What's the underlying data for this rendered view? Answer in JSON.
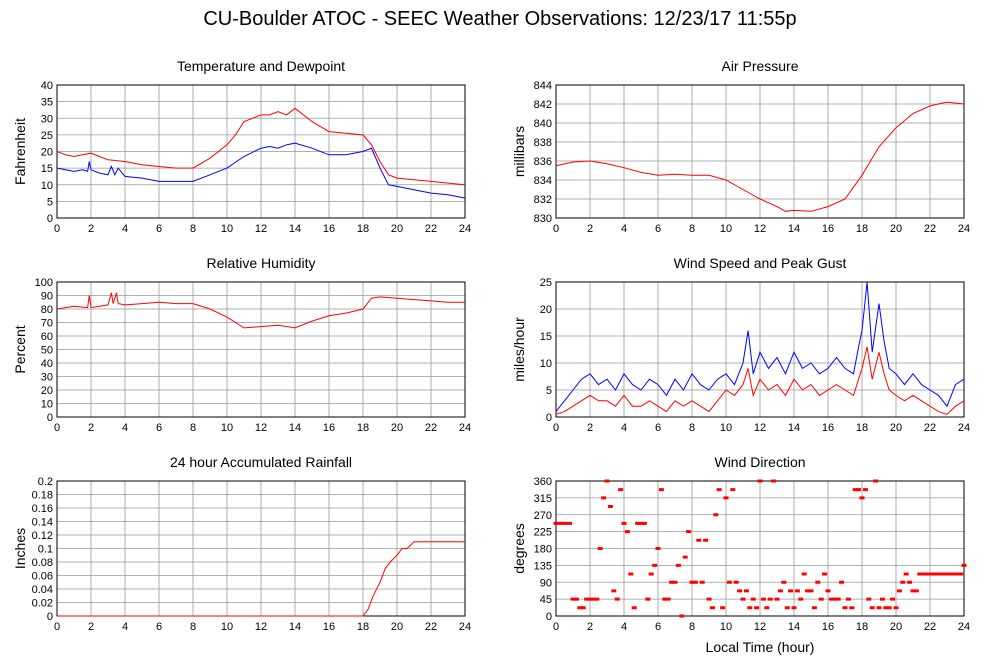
{
  "title": "CU-Boulder ATOC - SEEC Weather Observations: 12/23/17 11:55p",
  "xlabel": "Local Time (hour)",
  "colors": {
    "red": "#ff0000",
    "blue": "#0000ff",
    "grid": "#999999"
  },
  "chart_data": [
    {
      "type": "line",
      "title": "Temperature and Dewpoint",
      "ylabel": "Fahrenheit",
      "xlim": [
        0,
        24
      ],
      "ylim": [
        0,
        40
      ],
      "xticks": [
        0,
        2,
        4,
        6,
        8,
        10,
        12,
        14,
        16,
        18,
        20,
        22,
        24
      ],
      "yticks": [
        0,
        5,
        10,
        15,
        20,
        25,
        30,
        35,
        40
      ],
      "series": [
        {
          "color": "#ff0000",
          "x": [
            0,
            0.5,
            1,
            1.5,
            2,
            2.5,
            3,
            4,
            5,
            6,
            7,
            8,
            9,
            10,
            10.5,
            11,
            12,
            12.5,
            13,
            13.5,
            14,
            15,
            16,
            17,
            18,
            18.5,
            19,
            19.5,
            20,
            21,
            22,
            23,
            24
          ],
          "y": [
            20,
            19,
            18.5,
            19,
            19.5,
            18.5,
            17.5,
            17,
            16,
            15.5,
            15,
            15,
            18,
            22,
            25,
            29,
            31,
            31,
            32,
            31,
            33,
            29,
            26,
            25.5,
            25,
            22,
            17,
            13,
            12,
            11.5,
            11,
            10.5,
            10
          ]
        },
        {
          "color": "#0000ff",
          "x": [
            0,
            0.5,
            1,
            1.5,
            1.8,
            1.9,
            2,
            2.5,
            3,
            3.2,
            3.4,
            3.6,
            4,
            5,
            6,
            7,
            8,
            9,
            10,
            11,
            12,
            12.5,
            13,
            13.5,
            14,
            15,
            16,
            17,
            18,
            18.5,
            19,
            19.5,
            20,
            21,
            22,
            23,
            24
          ],
          "y": [
            15,
            14.5,
            14,
            14.5,
            14,
            17,
            14.5,
            13.5,
            13,
            15.5,
            13,
            15,
            12.5,
            12,
            11,
            11,
            11,
            13,
            15,
            18.5,
            21,
            21.5,
            21,
            22,
            22.5,
            21,
            19,
            19,
            20,
            21,
            15,
            10,
            9.5,
            8.5,
            7.5,
            7,
            6
          ]
        }
      ]
    },
    {
      "type": "line",
      "title": "Air Pressure",
      "ylabel": "millibars",
      "xlim": [
        0,
        24
      ],
      "ylim": [
        830,
        844
      ],
      "xticks": [
        0,
        2,
        4,
        6,
        8,
        10,
        12,
        14,
        16,
        18,
        20,
        22,
        24
      ],
      "yticks": [
        830,
        832,
        834,
        836,
        838,
        840,
        842,
        844
      ],
      "series": [
        {
          "color": "#ff0000",
          "x": [
            0,
            1,
            2,
            3,
            4,
            5,
            6,
            7,
            8,
            9,
            10,
            11,
            12,
            13,
            13.5,
            14,
            15,
            16,
            17,
            18,
            19,
            20,
            21,
            22,
            23,
            24
          ],
          "y": [
            835.5,
            835.9,
            836,
            835.7,
            835.3,
            834.8,
            834.5,
            834.6,
            834.5,
            834.5,
            834,
            833,
            832,
            831.2,
            830.7,
            830.8,
            830.7,
            831.2,
            832,
            834.5,
            837.5,
            839.5,
            841,
            841.8,
            842.2,
            842
          ]
        }
      ]
    },
    {
      "type": "line",
      "title": "Relative Humidity",
      "ylabel": "Percent",
      "xlim": [
        0,
        24
      ],
      "ylim": [
        0,
        100
      ],
      "xticks": [
        0,
        2,
        4,
        6,
        8,
        10,
        12,
        14,
        16,
        18,
        20,
        22,
        24
      ],
      "yticks": [
        0,
        10,
        20,
        30,
        40,
        50,
        60,
        70,
        80,
        90,
        100
      ],
      "series": [
        {
          "color": "#ff0000",
          "x": [
            0,
            1,
            1.8,
            1.9,
            2,
            3,
            3.2,
            3.3,
            3.5,
            3.6,
            4,
            5,
            6,
            7,
            8,
            9,
            10,
            11,
            12,
            13,
            14,
            15,
            16,
            17,
            18,
            18.5,
            19,
            20,
            21,
            22,
            23,
            24
          ],
          "y": [
            80,
            82,
            81,
            90,
            81,
            83,
            92,
            84,
            92,
            84,
            83,
            84,
            85,
            84,
            84,
            80,
            74,
            66,
            67,
            68,
            66,
            71,
            75,
            77,
            80,
            88,
            89,
            88,
            87,
            86,
            85,
            85
          ]
        }
      ]
    },
    {
      "type": "line",
      "title": "Wind Speed and Peak Gust",
      "ylabel": "miles/hour",
      "xlim": [
        0,
        24
      ],
      "ylim": [
        0,
        25
      ],
      "xticks": [
        0,
        2,
        4,
        6,
        8,
        10,
        12,
        14,
        16,
        18,
        20,
        22,
        24
      ],
      "yticks": [
        0,
        5,
        10,
        15,
        20,
        25
      ],
      "series": [
        {
          "color": "#0000ff",
          "x": [
            0,
            0.5,
            1,
            1.5,
            2,
            2.5,
            3,
            3.5,
            4,
            4.5,
            5,
            5.5,
            6,
            6.5,
            7,
            7.5,
            8,
            8.5,
            9,
            9.5,
            10,
            10.5,
            11,
            11.3,
            11.6,
            12,
            12.5,
            13,
            13.5,
            14,
            14.5,
            15,
            15.5,
            16,
            16.5,
            17,
            17.5,
            17.8,
            18,
            18.3,
            18.6,
            19,
            19.3,
            19.6,
            20,
            20.5,
            21,
            21.5,
            22,
            22.5,
            23,
            23.5,
            24
          ],
          "y": [
            1,
            3,
            5,
            7,
            8,
            6,
            7,
            5,
            8,
            6,
            5,
            7,
            6,
            4,
            7,
            5,
            8,
            6,
            5,
            7,
            8,
            6,
            10,
            16,
            8,
            12,
            9,
            11,
            8,
            12,
            9,
            10,
            8,
            9,
            11,
            9,
            8,
            13,
            16,
            25,
            12,
            21,
            14,
            9,
            8,
            6,
            8,
            6,
            5,
            4,
            2,
            6,
            7
          ]
        },
        {
          "color": "#ff0000",
          "x": [
            0,
            0.5,
            1,
            1.5,
            2,
            2.5,
            3,
            3.5,
            4,
            4.5,
            5,
            5.5,
            6,
            6.5,
            7,
            7.5,
            8,
            8.5,
            9,
            9.5,
            10,
            10.5,
            11,
            11.3,
            11.6,
            12,
            12.5,
            13,
            13.5,
            14,
            14.5,
            15,
            15.5,
            16,
            16.5,
            17,
            17.5,
            17.8,
            18,
            18.3,
            18.6,
            19,
            19.3,
            19.6,
            20,
            20.5,
            21,
            21.5,
            22,
            22.5,
            23,
            23.5,
            24
          ],
          "y": [
            0.5,
            1,
            2,
            3,
            4,
            3,
            3,
            2,
            4,
            2,
            2,
            3,
            2,
            1,
            3,
            2,
            3,
            2,
            1,
            3,
            5,
            4,
            6,
            9,
            4,
            7,
            5,
            6,
            4,
            7,
            5,
            6,
            4,
            5,
            6,
            5,
            4,
            7,
            9,
            13,
            7,
            12,
            8,
            5,
            4,
            3,
            4,
            3,
            2,
            1,
            0.5,
            2,
            3
          ]
        }
      ]
    },
    {
      "type": "line",
      "title": "24 hour Accumulated Rainfall",
      "ylabel": "Inches",
      "xlim": [
        0,
        24
      ],
      "ylim": [
        0,
        0.2
      ],
      "xticks": [
        0,
        2,
        4,
        6,
        8,
        10,
        12,
        14,
        16,
        18,
        20,
        22,
        24
      ],
      "yticks": [
        0,
        0.02,
        0.04,
        0.06,
        0.08,
        0.1,
        0.12,
        0.14,
        0.16,
        0.18,
        0.2
      ],
      "series": [
        {
          "color": "#ff0000",
          "x": [
            0,
            18,
            18.3,
            18.6,
            19,
            19.3,
            19.6,
            20,
            20.3,
            20.6,
            21,
            24
          ],
          "y": [
            0,
            0,
            0.01,
            0.03,
            0.05,
            0.07,
            0.08,
            0.09,
            0.1,
            0.1,
            0.11,
            0.11
          ]
        }
      ]
    },
    {
      "type": "scatter",
      "title": "Wind Direction",
      "ylabel": "degrees",
      "xlim": [
        0,
        24
      ],
      "ylim": [
        0,
        360
      ],
      "xticks": [
        0,
        2,
        4,
        6,
        8,
        10,
        12,
        14,
        16,
        18,
        20,
        22,
        24
      ],
      "yticks": [
        0,
        45,
        90,
        135,
        180,
        225,
        270,
        315,
        360
      ],
      "series": [
        {
          "color": "#ff0000",
          "x": [
            0,
            0.2,
            0.4,
            0.6,
            0.8,
            1,
            1.2,
            1.4,
            1.6,
            1.8,
            2,
            2.2,
            2.4,
            2.6,
            2.8,
            3,
            3.2,
            3.4,
            3.6,
            3.8,
            4,
            4.2,
            4.4,
            4.6,
            4.8,
            5,
            5.2,
            5.4,
            5.6,
            5.8,
            6,
            6.2,
            6.4,
            6.6,
            6.8,
            7,
            7.2,
            7.4,
            7.6,
            7.8,
            8,
            8.2,
            8.4,
            8.6,
            8.8,
            9,
            9.2,
            9.4,
            9.6,
            9.8,
            10,
            10.2,
            10.4,
            10.6,
            10.8,
            11,
            11.2,
            11.4,
            11.6,
            11.8,
            12,
            12.2,
            12.4,
            12.6,
            12.8,
            13,
            13.2,
            13.4,
            13.6,
            13.8,
            14,
            14.2,
            14.4,
            14.6,
            14.8,
            15,
            15.2,
            15.4,
            15.6,
            15.8,
            16,
            16.2,
            16.4,
            16.6,
            16.8,
            17,
            17.2,
            17.4,
            17.6,
            17.8,
            18,
            18.2,
            18.4,
            18.6,
            18.8,
            19,
            19.2,
            19.4,
            19.6,
            19.8,
            20,
            20.2,
            20.4,
            20.6,
            20.8,
            21,
            21.2,
            21.4,
            21.6,
            21.8,
            22,
            22.2,
            22.4,
            22.6,
            22.8,
            23,
            23.2,
            23.4,
            23.6,
            23.8,
            24
          ],
          "y": [
            247,
            247,
            247,
            247,
            247,
            45,
            45,
            22,
            22,
            45,
            45,
            45,
            45,
            180,
            315,
            360,
            292,
            67,
            45,
            337,
            247,
            225,
            112,
            22,
            247,
            247,
            247,
            45,
            112,
            135,
            180,
            337,
            45,
            45,
            90,
            90,
            135,
            0,
            157,
            225,
            90,
            90,
            202,
            90,
            202,
            45,
            22,
            270,
            337,
            22,
            315,
            90,
            337,
            90,
            67,
            45,
            67,
            22,
            45,
            22,
            360,
            45,
            22,
            45,
            360,
            45,
            67,
            90,
            22,
            67,
            22,
            67,
            45,
            112,
            67,
            67,
            22,
            90,
            45,
            112,
            67,
            45,
            45,
            45,
            90,
            22,
            45,
            22,
            337,
            337,
            315,
            337,
            45,
            22,
            360,
            22,
            45,
            22,
            22,
            45,
            22,
            67,
            90,
            112,
            90,
            67,
            67,
            112,
            112,
            112,
            112,
            112,
            112,
            112,
            112,
            112,
            112,
            112,
            112,
            112,
            135
          ]
        }
      ]
    }
  ]
}
